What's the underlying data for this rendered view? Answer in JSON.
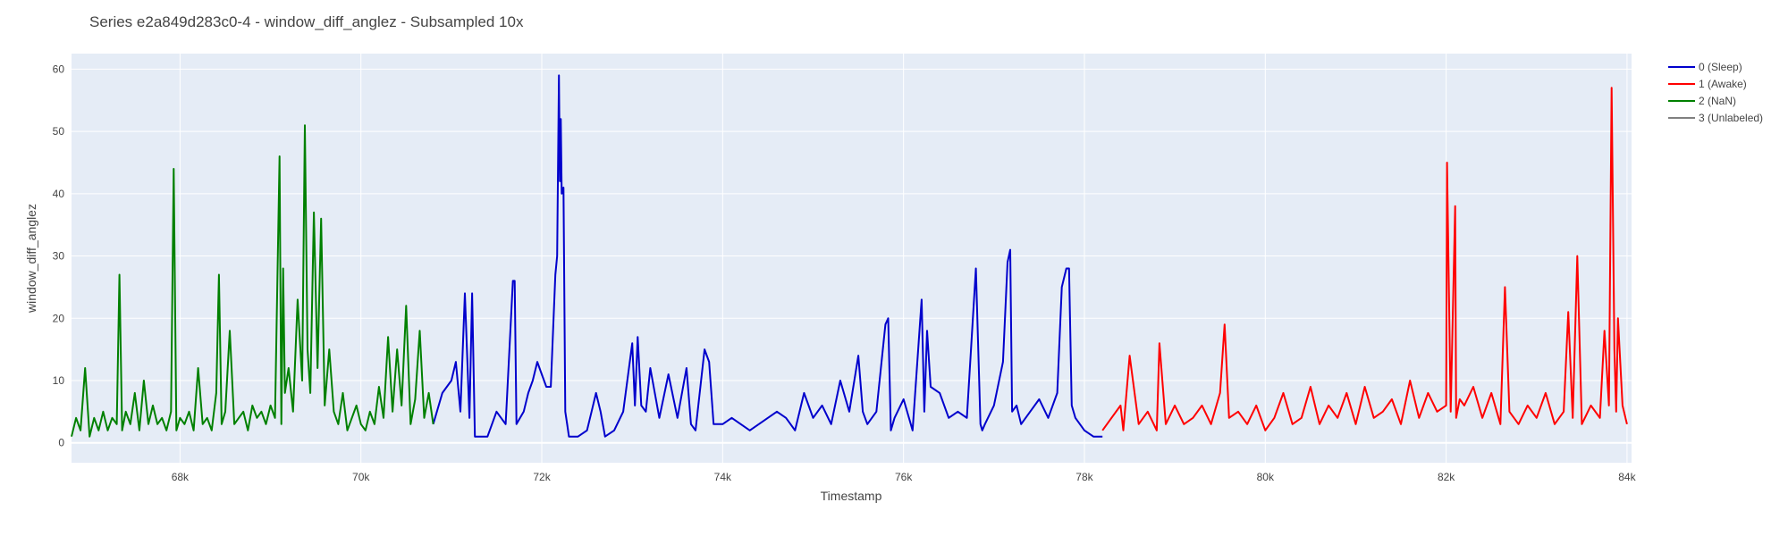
{
  "chart_data": {
    "type": "line",
    "title": "Series e2a849d283c0-4 - window_diff_anglez - Subsampled 10x",
    "xlabel": "Timestamp",
    "ylabel": "window_diff_anglez",
    "xlim": [
      66800,
      84050
    ],
    "ylim": [
      -3.2,
      62.5
    ],
    "x_ticks": [
      68000,
      70000,
      72000,
      74000,
      76000,
      78000,
      80000,
      82000,
      84000
    ],
    "x_tick_labels": [
      "68k",
      "70k",
      "72k",
      "74k",
      "76k",
      "78k",
      "80k",
      "82k",
      "84k"
    ],
    "y_ticks": [
      0,
      10,
      20,
      30,
      40,
      50,
      60
    ],
    "y_tick_labels": [
      "0",
      "10",
      "20",
      "30",
      "40",
      "50",
      "60"
    ],
    "grid": true,
    "legend_position": "top-right",
    "plot_background": "#e5ecf6",
    "series": [
      {
        "name": "0 (Sleep)",
        "color": "#0000cc",
        "x": [
          70800,
          70900,
          71000,
          71050,
          71100,
          71150,
          71200,
          71230,
          71260,
          71300,
          71400,
          71500,
          71600,
          71680,
          71700,
          71720,
          71800,
          71850,
          71900,
          71950,
          72000,
          72050,
          72100,
          72150,
          72170,
          72190,
          72200,
          72210,
          72220,
          72240,
          72260,
          72280,
          72300,
          72400,
          72500,
          72550,
          72600,
          72650,
          72700,
          72800,
          72900,
          73000,
          73030,
          73060,
          73100,
          73150,
          73200,
          73300,
          73400,
          73500,
          73600,
          73650,
          73700,
          73800,
          73850,
          73900,
          74000,
          74100,
          74200,
          74300,
          74400,
          74500,
          74600,
          74700,
          74800,
          74900,
          75000,
          75100,
          75200,
          75300,
          75400,
          75500,
          75550,
          75600,
          75700,
          75800,
          75830,
          75860,
          75900,
          76000,
          76100,
          76200,
          76230,
          76260,
          76300,
          76400,
          76500,
          76600,
          76700,
          76800,
          76850,
          76870,
          76900,
          77000,
          77100,
          77150,
          77180,
          77200,
          77250,
          77300,
          77400,
          77500,
          77600,
          77700,
          77750,
          77800,
          77830,
          77860,
          77900,
          78000,
          78100,
          78200
        ],
        "values": [
          3,
          8,
          10,
          13,
          5,
          24,
          4,
          24,
          1,
          1,
          1,
          5,
          3,
          26,
          26,
          3,
          5,
          8,
          10,
          13,
          11,
          9,
          9,
          27,
          30,
          59,
          42,
          52,
          40,
          41,
          5,
          3,
          1,
          1,
          2,
          5,
          8,
          5,
          1,
          2,
          5,
          16,
          6,
          17,
          6,
          5,
          12,
          4,
          11,
          4,
          12,
          3,
          2,
          15,
          13,
          3,
          3,
          4,
          3,
          2,
          3,
          4,
          5,
          4,
          2,
          8,
          4,
          6,
          3,
          10,
          5,
          14,
          5,
          3,
          5,
          19,
          20,
          2,
          4,
          7,
          2,
          23,
          5,
          18,
          9,
          8,
          4,
          5,
          4,
          28,
          3,
          2,
          3,
          6,
          13,
          29,
          31,
          5,
          6,
          3,
          5,
          7,
          4,
          8,
          25,
          28,
          28,
          6,
          4,
          2,
          1,
          1
        ]
      },
      {
        "name": "1 (Awake)",
        "color": "#ff0000",
        "x": [
          78200,
          78300,
          78400,
          78430,
          78500,
          78600,
          78700,
          78800,
          78830,
          78900,
          79000,
          79100,
          79200,
          79300,
          79400,
          79500,
          79550,
          79600,
          79700,
          79800,
          79900,
          80000,
          80100,
          80200,
          80300,
          80400,
          80500,
          80600,
          80700,
          80800,
          80900,
          81000,
          81100,
          81200,
          81300,
          81400,
          81500,
          81600,
          81700,
          81800,
          81900,
          82000,
          82010,
          82050,
          82100,
          82110,
          82150,
          82200,
          82300,
          82400,
          82500,
          82600,
          82650,
          82700,
          82800,
          82900,
          83000,
          83100,
          83200,
          83300,
          83350,
          83400,
          83450,
          83500,
          83600,
          83700,
          83750,
          83800,
          83830,
          83860,
          83880,
          83900,
          83950,
          84000
        ],
        "values": [
          2,
          4,
          6,
          2,
          14,
          3,
          5,
          2,
          16,
          3,
          6,
          3,
          4,
          6,
          3,
          8,
          19,
          4,
          5,
          3,
          6,
          2,
          4,
          8,
          3,
          4,
          9,
          3,
          6,
          4,
          8,
          3,
          9,
          4,
          5,
          7,
          3,
          10,
          4,
          8,
          5,
          6,
          45,
          5,
          38,
          4,
          7,
          6,
          9,
          4,
          8,
          3,
          25,
          5,
          3,
          6,
          4,
          8,
          3,
          5,
          21,
          4,
          30,
          3,
          6,
          4,
          18,
          6,
          57,
          15,
          5,
          20,
          6,
          3
        ]
      },
      {
        "name": "2 (NaN)",
        "color": "#008000",
        "x": [
          66800,
          66850,
          66900,
          66950,
          67000,
          67050,
          67100,
          67150,
          67200,
          67250,
          67300,
          67330,
          67360,
          67400,
          67450,
          67500,
          67550,
          67600,
          67650,
          67700,
          67750,
          67800,
          67850,
          67900,
          67930,
          67960,
          68000,
          68050,
          68100,
          68150,
          68200,
          68250,
          68300,
          68350,
          68400,
          68430,
          68460,
          68500,
          68550,
          68600,
          68650,
          68700,
          68750,
          68800,
          68850,
          68900,
          68950,
          69000,
          69050,
          69100,
          69120,
          69140,
          69160,
          69200,
          69250,
          69300,
          69350,
          69380,
          69410,
          69440,
          69480,
          69520,
          69560,
          69600,
          69650,
          69700,
          69750,
          69800,
          69850,
          69900,
          69950,
          70000,
          70050,
          70100,
          70150,
          70200,
          70250,
          70300,
          70350,
          70400,
          70450,
          70500,
          70550,
          70600,
          70650,
          70700,
          70750,
          70800
        ],
        "values": [
          1,
          4,
          2,
          12,
          1,
          4,
          2,
          5,
          2,
          4,
          3,
          27,
          2,
          5,
          3,
          8,
          2,
          10,
          3,
          6,
          3,
          4,
          2,
          5,
          44,
          2,
          4,
          3,
          5,
          2,
          12,
          3,
          4,
          2,
          8,
          27,
          3,
          5,
          18,
          3,
          4,
          5,
          2,
          6,
          4,
          5,
          3,
          6,
          4,
          46,
          3,
          28,
          8,
          12,
          5,
          23,
          10,
          51,
          15,
          8,
          37,
          12,
          36,
          6,
          15,
          5,
          3,
          8,
          2,
          4,
          6,
          3,
          2,
          5,
          3,
          9,
          4,
          17,
          5,
          15,
          6,
          22,
          3,
          7,
          18,
          4,
          8,
          3
        ]
      },
      {
        "name": "3 (Unlabeled)",
        "color": "#808080",
        "x": [],
        "values": []
      }
    ]
  }
}
